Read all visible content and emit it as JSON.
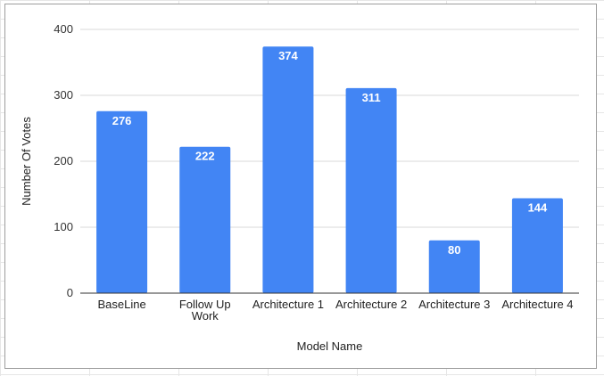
{
  "chart_data": {
    "type": "bar",
    "title": "",
    "xlabel": "Model Name",
    "ylabel": "Number Of Votes",
    "categories": [
      "BaseLine",
      "Follow Up Work",
      "Architecture 1",
      "Architecture 2",
      "Architecture 3",
      "Architecture 4"
    ],
    "category_lines": [
      [
        "BaseLine"
      ],
      [
        "Follow Up",
        "Work"
      ],
      [
        "Architecture 1"
      ],
      [
        "Architecture 2"
      ],
      [
        "Architecture 3"
      ],
      [
        "Architecture 4"
      ]
    ],
    "values": [
      276,
      222,
      374,
      311,
      80,
      144
    ],
    "data_labels": [
      "276",
      "222",
      "374",
      "311",
      "80",
      "144"
    ],
    "ylim": [
      0,
      400
    ],
    "yticks": [
      "0",
      "100",
      "200",
      "300",
      "400"
    ],
    "grid": true,
    "legend": "none",
    "bar_color": "#4285f4",
    "label_color": "#ffffff"
  }
}
